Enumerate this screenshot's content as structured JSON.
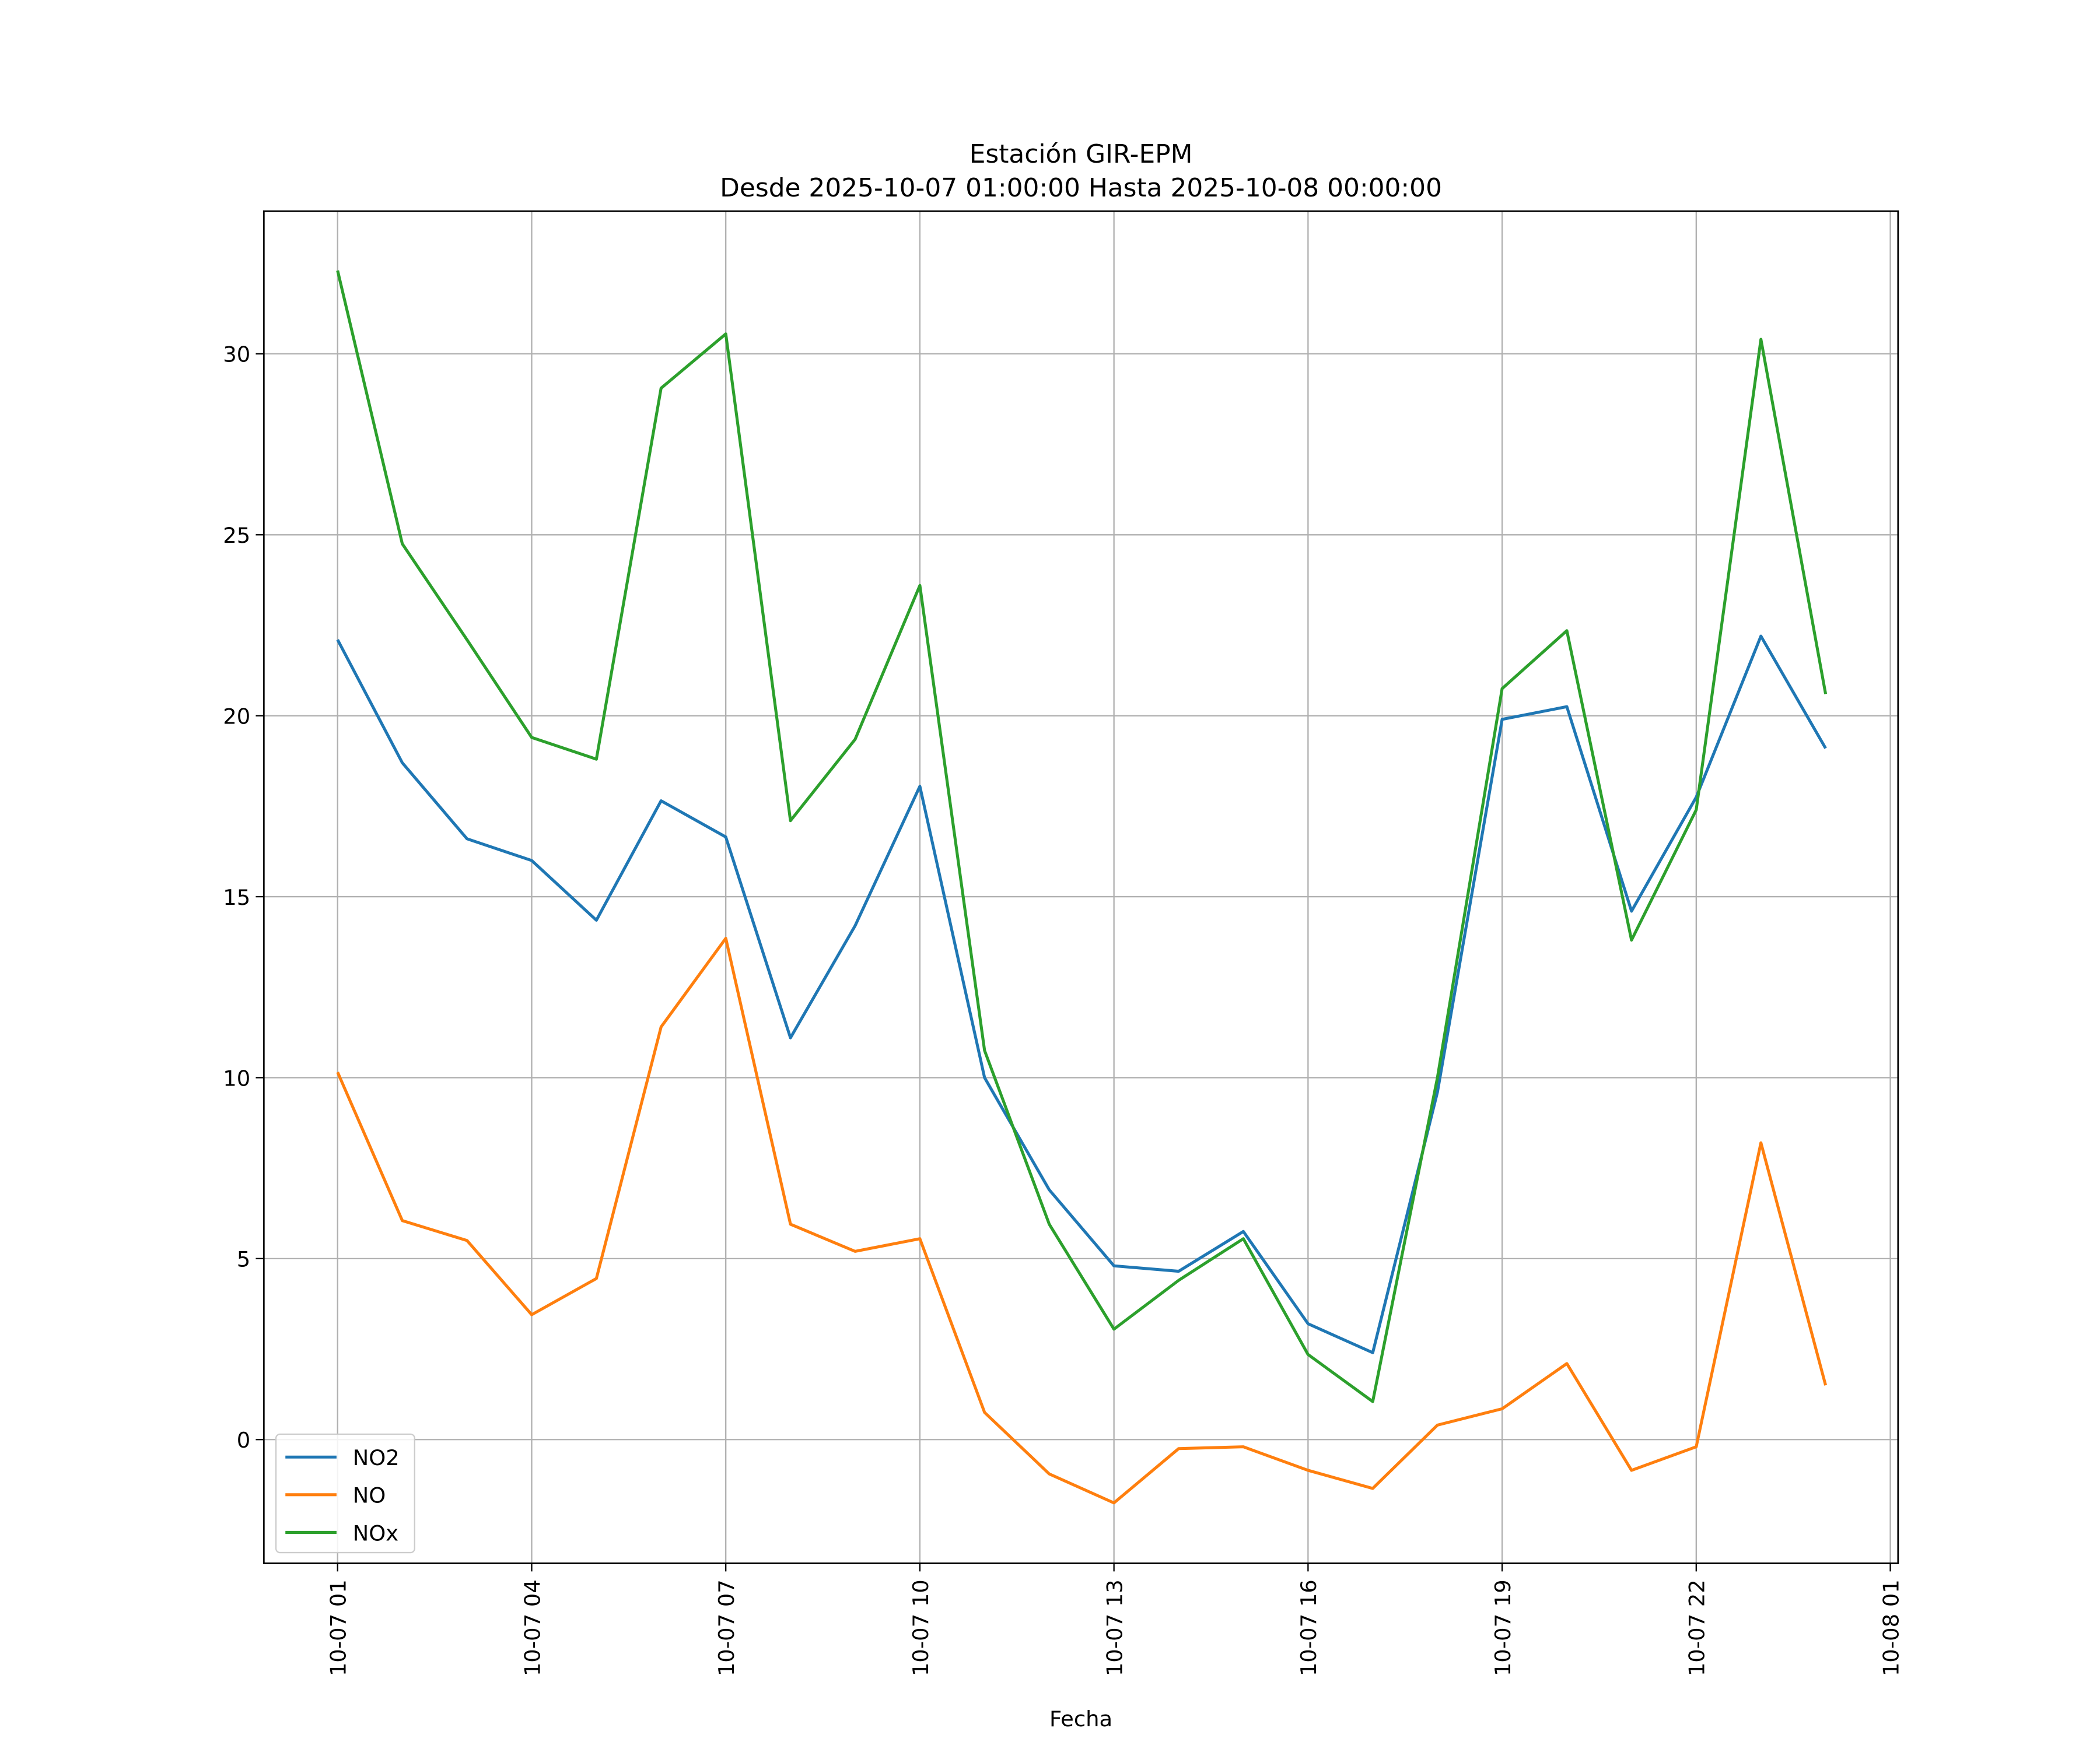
{
  "chart_data": {
    "type": "line",
    "title": "Estación GIR-EPM",
    "subtitle": "Desde 2025-10-07 01:00:00 Hasta 2025-10-08 00:00:00",
    "xlabel": "Fecha",
    "ylabel": "",
    "x_hours_from_start": [
      0,
      1,
      2,
      3,
      4,
      5,
      6,
      7,
      8,
      9,
      10,
      11,
      12,
      13,
      14,
      15,
      16,
      17,
      18,
      19,
      20,
      21,
      22,
      23
    ],
    "xlim_hours": [
      -1.14,
      24.12
    ],
    "ylim": [
      -3.42,
      33.94
    ],
    "xticks": [
      {
        "h": 0,
        "label": "10-07 01"
      },
      {
        "h": 3,
        "label": "10-07 04"
      },
      {
        "h": 6,
        "label": "10-07 07"
      },
      {
        "h": 9,
        "label": "10-07 10"
      },
      {
        "h": 12,
        "label": "10-07 13"
      },
      {
        "h": 15,
        "label": "10-07 16"
      },
      {
        "h": 18,
        "label": "10-07 19"
      },
      {
        "h": 21,
        "label": "10-07 22"
      },
      {
        "h": 24,
        "label": "10-08 01"
      }
    ],
    "yticks": [
      {
        "v": 0,
        "label": "0"
      },
      {
        "v": 5,
        "label": "5"
      },
      {
        "v": 10,
        "label": "10"
      },
      {
        "v": 15,
        "label": "15"
      },
      {
        "v": 20,
        "label": "20"
      },
      {
        "v": 25,
        "label": "25"
      },
      {
        "v": 30,
        "label": "30"
      }
    ],
    "grid": true,
    "legend_position": "lower-left",
    "series": [
      {
        "name": "NO2",
        "color": "#1f77b4",
        "values": [
          22.1,
          18.7,
          16.6,
          16.0,
          14.35,
          17.65,
          16.65,
          11.1,
          14.2,
          18.05,
          10.0,
          6.9,
          4.8,
          4.65,
          5.75,
          3.2,
          2.4,
          9.6,
          19.9,
          20.25,
          14.6,
          17.75,
          22.2,
          19.1
        ]
      },
      {
        "name": "NO",
        "color": "#ff7f0e",
        "values": [
          10.15,
          6.05,
          5.5,
          3.45,
          4.45,
          11.4,
          13.85,
          5.95,
          5.2,
          5.55,
          0.75,
          -0.95,
          -1.75,
          -0.25,
          -0.2,
          -0.85,
          -1.35,
          0.4,
          0.85,
          2.1,
          -0.85,
          -0.2,
          8.2,
          1.5
        ]
      },
      {
        "name": "NOx",
        "color": "#2ca02c",
        "values": [
          32.3,
          24.75,
          22.1,
          19.4,
          18.8,
          29.05,
          30.55,
          17.1,
          19.35,
          23.6,
          10.75,
          5.95,
          3.05,
          4.4,
          5.55,
          2.35,
          1.05,
          10.0,
          20.75,
          22.35,
          13.8,
          17.4,
          30.4,
          20.6
        ]
      }
    ]
  }
}
